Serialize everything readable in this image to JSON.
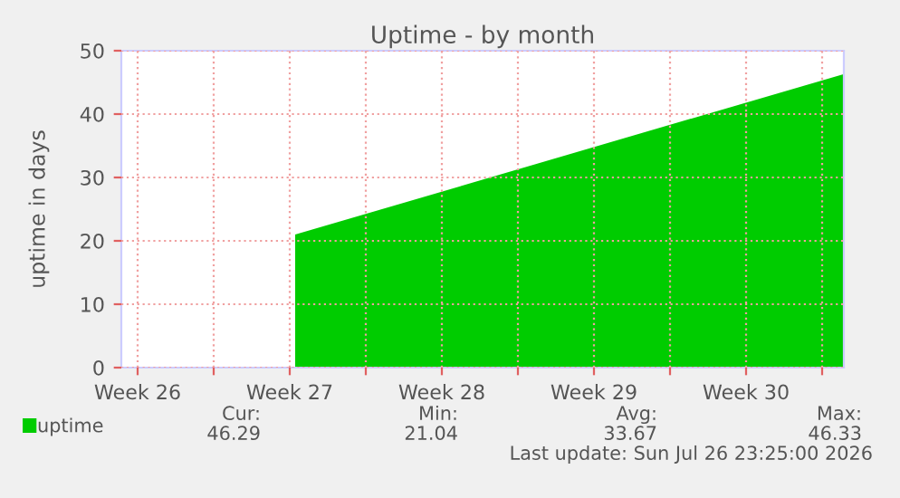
{
  "chart_data": {
    "type": "area",
    "title": "Uptime - by month",
    "ylabel": "uptime in days",
    "x": [
      "2026-07-01T18:00",
      "2026-07-26T23:25"
    ],
    "series": [
      {
        "name": "uptime",
        "color": "#00cc00",
        "values": [
          21,
          46.3
        ]
      }
    ],
    "xlim": [
      "2026-06-23T18:00",
      "2026-07-27T00:00"
    ],
    "xticks": [
      {
        "value": "2026-06-24T12:00",
        "label": "Week 26"
      },
      {
        "value": "2026-06-28",
        "label": null
      },
      {
        "value": "2026-07-01T12:00",
        "label": "Week 27"
      },
      {
        "value": "2026-07-05",
        "label": null
      },
      {
        "value": "2026-07-08T12:00",
        "label": "Week 28"
      },
      {
        "value": "2026-07-12",
        "label": null
      },
      {
        "value": "2026-07-15T12:00",
        "label": "Week 29"
      },
      {
        "value": "2026-07-19",
        "label": null
      },
      {
        "value": "2026-07-22T12:00",
        "label": "Week 30"
      },
      {
        "value": "2026-07-26",
        "label": null
      }
    ],
    "ylim": [
      0,
      50
    ],
    "yticks": [
      0,
      10,
      20,
      30,
      40,
      50
    ],
    "grid": true,
    "legend": "bottom left",
    "annotations": [
      "Cur:",
      "Min:",
      "Avg:",
      "Max:",
      "46.29",
      "21.04",
      "33.67",
      "46.33",
      "Last update: Sun Jul 26 23:25:00 2026"
    ]
  }
}
